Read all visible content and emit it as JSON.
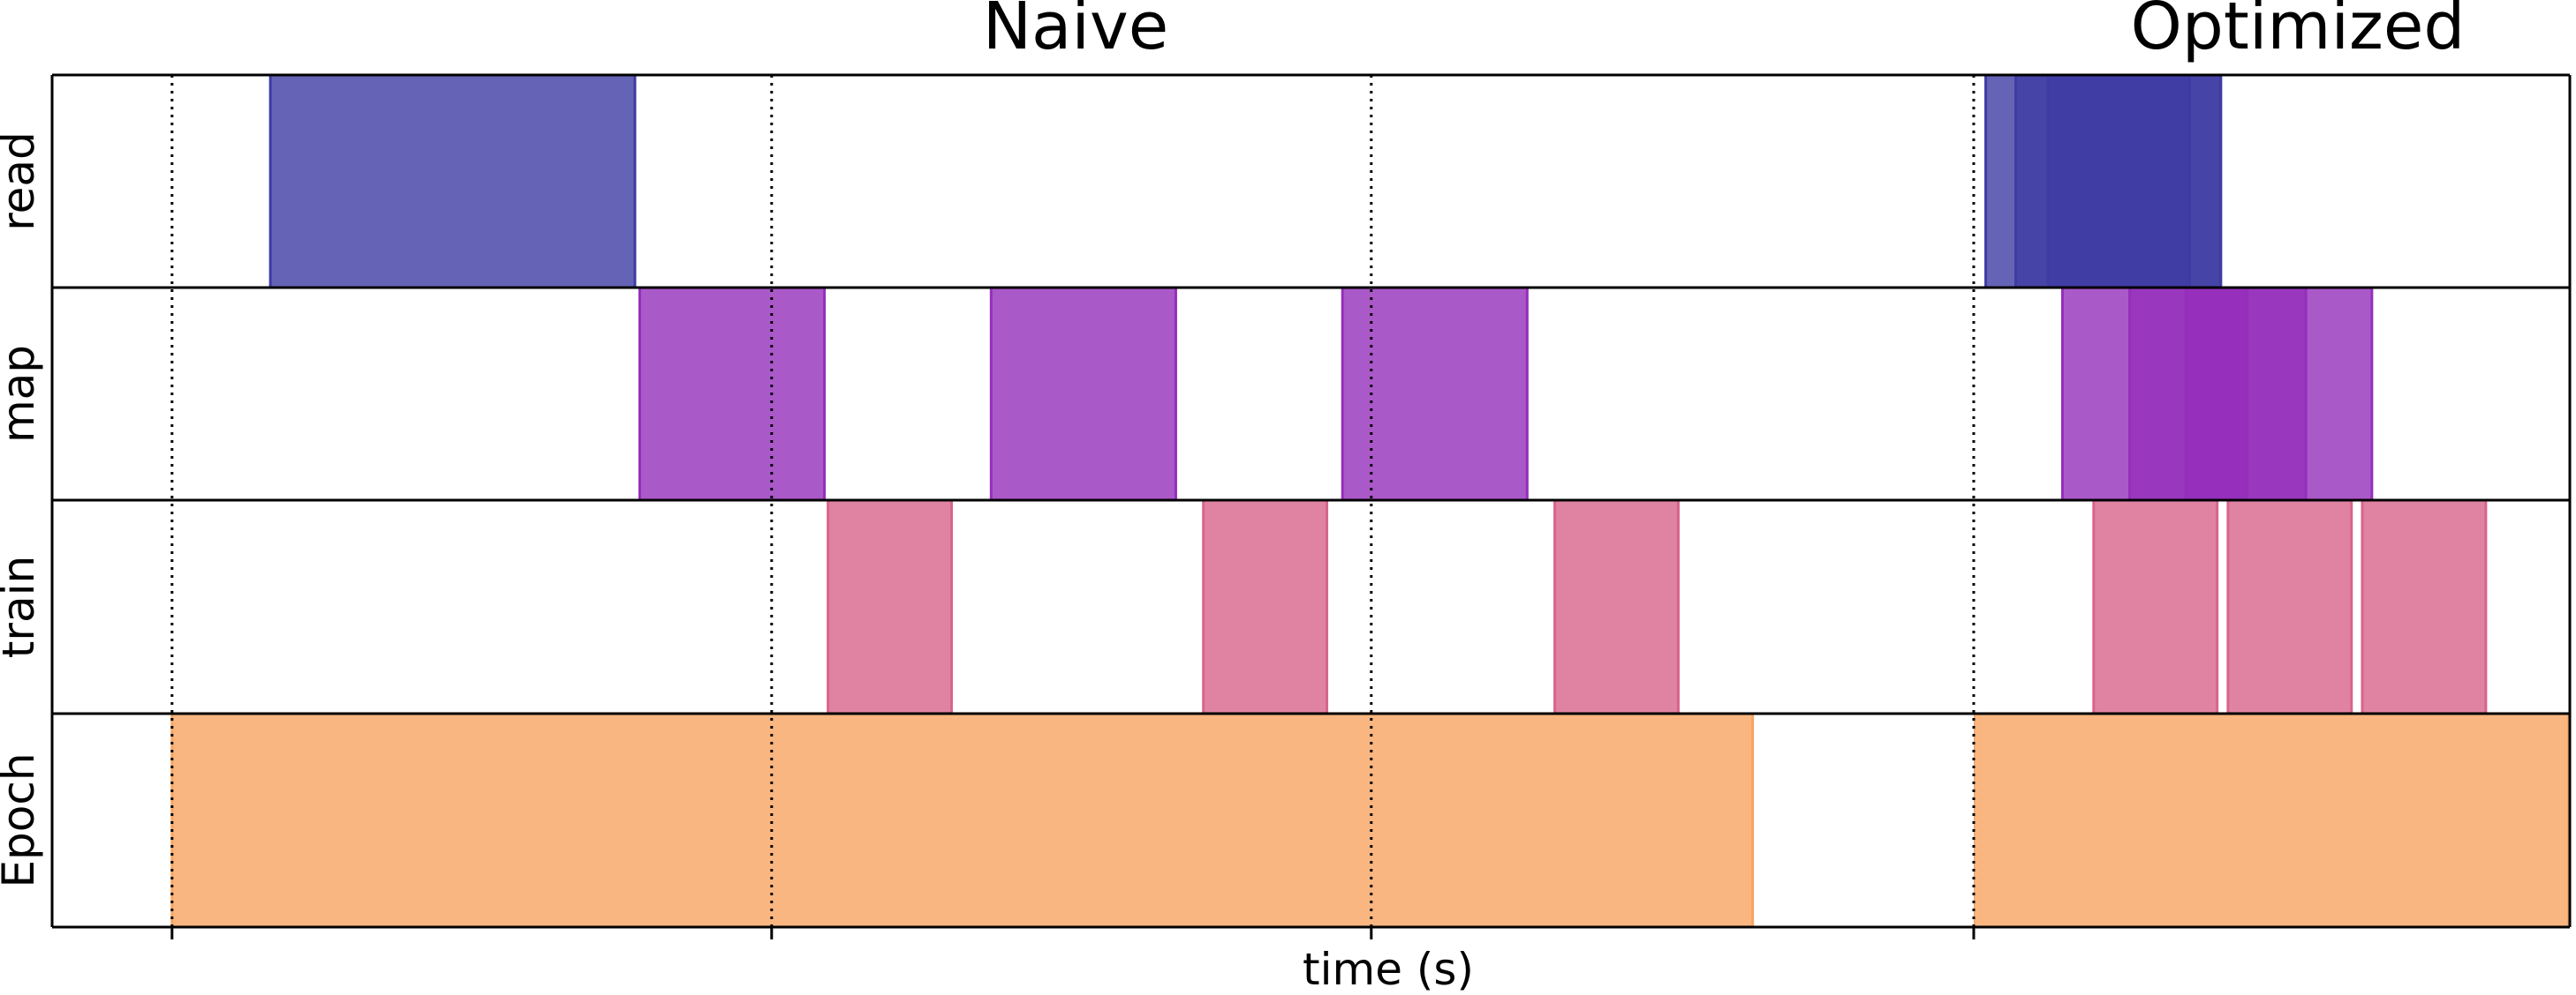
{
  "chart_data": {
    "type": "timeline",
    "titles": {
      "left": "Naive",
      "right": "Optimized"
    },
    "xlabel": "time (s)",
    "rows": [
      "read",
      "map",
      "train",
      "Epoch"
    ],
    "grid": "dotted vertical lines at step starts",
    "panels": [
      {
        "name": "Naive",
        "x_range": [
          0,
          13.05
        ],
        "gridlines": [
          1,
          6,
          11
        ],
        "ticks": [
          1,
          6,
          11
        ],
        "events": {
          "read": [
            {
              "start": 1.82,
              "end": 4.86
            }
          ],
          "map": [
            {
              "start": 4.9,
              "end": 6.44
            },
            {
              "start": 7.83,
              "end": 9.37
            },
            {
              "start": 10.76,
              "end": 12.3
            }
          ],
          "train": [
            {
              "start": 6.47,
              "end": 7.5
            },
            {
              "start": 9.6,
              "end": 10.63
            },
            {
              "start": 12.53,
              "end": 13.56
            }
          ],
          "Epoch": [
            {
              "start": 1.0,
              "end": 14.18
            }
          ]
        }
      },
      {
        "name": "Optimized",
        "x_range": [
          0,
          4.96
        ],
        "gridlines": [
          0
        ],
        "ticks": [
          0
        ],
        "events": {
          "read": [
            {
              "start": 0.1,
              "end": 2.06
            },
            {
              "start": 0.35,
              "end": 2.06
            },
            {
              "start": 0.62,
              "end": 1.8
            }
          ],
          "map": [
            {
              "start": 0.74,
              "end": 3.32
            },
            {
              "start": 1.3,
              "end": 2.77
            },
            {
              "start": 1.77,
              "end": 2.28
            },
            {
              "start": 1.77,
              "end": 2.28
            }
          ],
          "train": [
            {
              "start": 1.0,
              "end": 2.03
            },
            {
              "start": 2.12,
              "end": 3.15
            },
            {
              "start": 3.24,
              "end": 4.27
            }
          ],
          "Epoch": [
            {
              "start": 0.0,
              "end": 4.96
            }
          ]
        }
      }
    ],
    "colors": {
      "read": "#3e3ca4",
      "map": "#952fbb",
      "train": "#d8648c",
      "Epoch": "#f8a460"
    }
  }
}
